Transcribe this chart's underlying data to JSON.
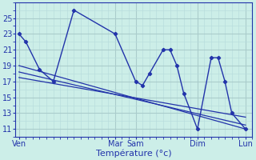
{
  "xlabel": "Température (°c)",
  "background_color": "#cceee8",
  "grid_major_color": "#aacccc",
  "grid_minor_color": "#b8dddd",
  "line_color": "#2233aa",
  "tick_labels": [
    "Ven",
    "Mar",
    "Sam",
    "Dim",
    "Lun"
  ],
  "tick_positions": [
    0,
    14,
    17,
    26,
    33
  ],
  "xlim": [
    -0.5,
    34
  ],
  "ylim": [
    10,
    27
  ],
  "yticks": [
    11,
    13,
    15,
    17,
    19,
    21,
    23,
    25
  ],
  "main_x": [
    0,
    1,
    3,
    5,
    8,
    14,
    17,
    18,
    19,
    21,
    22,
    23,
    24,
    26,
    28,
    29,
    30,
    31,
    33
  ],
  "main_y": [
    23,
    22,
    18.5,
    17,
    26,
    23,
    17,
    16.5,
    18,
    21,
    21,
    19,
    15.5,
    11,
    20,
    20,
    17,
    13,
    11
  ],
  "trend1_x": [
    0,
    33
  ],
  "trend1_y": [
    19,
    11
  ],
  "trend2_x": [
    0,
    33
  ],
  "trend2_y": [
    18.2,
    11.5
  ],
  "trend3_x": [
    0,
    33
  ],
  "trend3_y": [
    17.5,
    12.5
  ]
}
